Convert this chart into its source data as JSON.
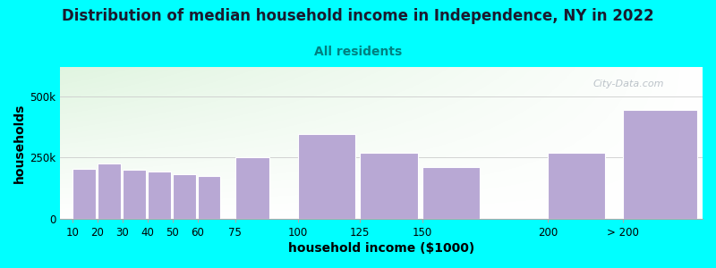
{
  "title": "Distribution of median household income in Independence, NY in 2022",
  "subtitle": "All residents",
  "xlabel": "household income ($1000)",
  "ylabel": "households",
  "background_color": "#00FFFF",
  "plot_bg_top_left": "#dff0d8",
  "plot_bg_top_right": "#f5f5f5",
  "plot_bg_bottom": "#ffffff",
  "bar_color": "#b8a8d4",
  "bar_edge_color": "#ffffff",
  "title_color": "#1a1a2e",
  "subtitle_color": "#008080",
  "watermark_color": "#b0b8c0",
  "categories": [
    "10",
    "20",
    "30",
    "40",
    "50",
    "60",
    "75",
    "100",
    "125",
    "150",
    "200",
    "> 200"
  ],
  "values": [
    205000,
    225000,
    200000,
    193000,
    183000,
    175000,
    250000,
    345000,
    270000,
    210000,
    268000,
    445000
  ],
  "yticks": [
    0,
    250000,
    500000
  ],
  "ytick_labels": [
    "0",
    "250k",
    "500k"
  ],
  "ylim": [
    0,
    620000
  ],
  "watermark": "City-Data.com",
  "title_fontsize": 12,
  "subtitle_fontsize": 10,
  "axis_label_fontsize": 10,
  "tick_fontsize": 8.5,
  "bar_positions": [
    10,
    20,
    30,
    40,
    50,
    60,
    75,
    100,
    125,
    150,
    200,
    230
  ],
  "bar_widths": [
    9.2,
    9.2,
    9.2,
    9.2,
    9.2,
    9.2,
    13.8,
    23,
    23,
    23,
    23,
    30
  ],
  "xlim_left": 5,
  "xlim_right": 262
}
